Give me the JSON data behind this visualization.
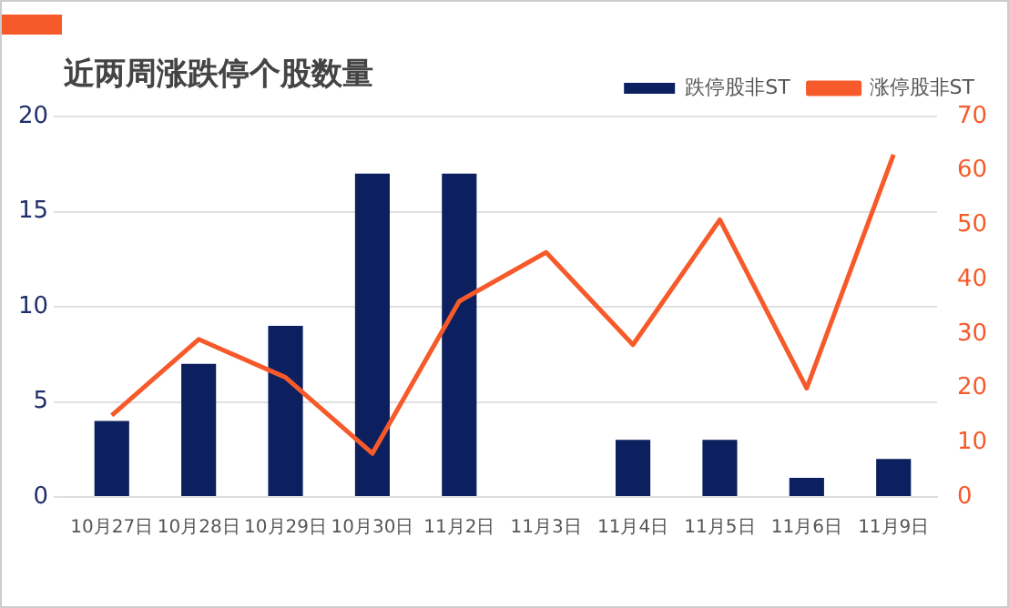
{
  "chart_data": {
    "type": "bar",
    "title": "近两周涨跌停个股数量",
    "categories": [
      "10月27日",
      "10月28日",
      "10月29日",
      "10月30日",
      "11月2日",
      "11月3日",
      "11月4日",
      "11月5日",
      "11月6日",
      "11月9日"
    ],
    "series": [
      {
        "name": "跌停股非ST",
        "color": "#0c1f5e",
        "values": [
          4,
          7,
          9,
          17,
          17,
          0,
          3,
          3,
          1,
          2
        ]
      },
      {
        "name": "涨停股非ST",
        "color": "#f75a2a",
        "type": "line",
        "axis": "y2",
        "values": [
          15,
          29,
          22,
          8,
          36,
          45,
          28,
          51,
          20,
          63
        ]
      }
    ],
    "ylim": [
      0,
      20
    ],
    "yticks": [
      0,
      5,
      10,
      15,
      20
    ],
    "y2lim": [
      0,
      70
    ],
    "y2ticks": [
      0,
      10,
      20,
      30,
      40,
      50,
      60,
      70
    ],
    "grid": "y",
    "legend": "top right",
    "marker": "none",
    "line_style": "solid"
  }
}
